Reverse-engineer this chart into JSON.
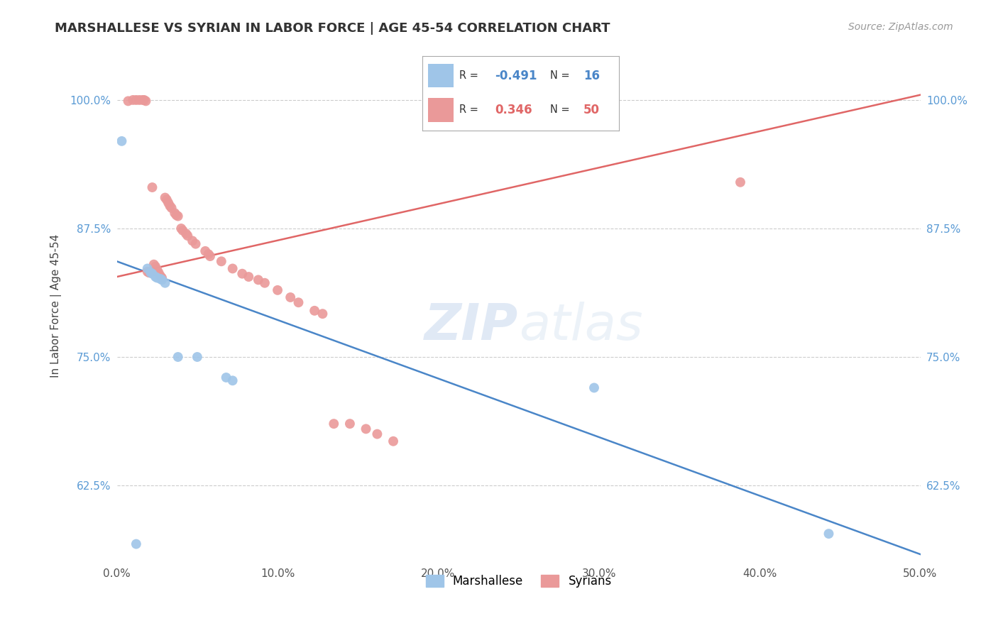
{
  "title": "MARSHALLESE VS SYRIAN IN LABOR FORCE | AGE 45-54 CORRELATION CHART",
  "source": "Source: ZipAtlas.com",
  "ylabel": "In Labor Force | Age 45-54",
  "xlim": [
    0.0,
    0.5
  ],
  "ylim": [
    0.55,
    1.05
  ],
  "yticks": [
    0.625,
    0.75,
    0.875,
    1.0
  ],
  "ytick_labels": [
    "62.5%",
    "75.0%",
    "87.5%",
    "100.0%"
  ],
  "xticks": [
    0.0,
    0.1,
    0.2,
    0.3,
    0.4,
    0.5
  ],
  "xtick_labels": [
    "0.0%",
    "10.0%",
    "20.0%",
    "30.0%",
    "40.0%",
    "50.0%"
  ],
  "watermark_zip": "ZIP",
  "watermark_atlas": "atlas",
  "legend_blue_r": "-0.491",
  "legend_blue_n": "16",
  "legend_pink_r": "0.346",
  "legend_pink_n": "50",
  "blue_dot_color": "#9fc5e8",
  "pink_dot_color": "#ea9999",
  "blue_line_color": "#4a86c8",
  "pink_line_color": "#e06666",
  "blue_scatter_x": [
    0.003,
    0.012,
    0.019,
    0.021,
    0.022,
    0.024,
    0.025,
    0.027,
    0.028,
    0.03,
    0.038,
    0.05,
    0.068,
    0.072,
    0.297,
    0.443
  ],
  "blue_scatter_y": [
    0.96,
    0.568,
    0.836,
    0.832,
    0.831,
    0.828,
    0.827,
    0.826,
    0.825,
    0.822,
    0.75,
    0.75,
    0.73,
    0.727,
    0.72,
    0.578
  ],
  "pink_scatter_x": [
    0.007,
    0.01,
    0.012,
    0.014,
    0.016,
    0.017,
    0.018,
    0.019,
    0.02,
    0.022,
    0.023,
    0.024,
    0.025,
    0.026,
    0.027,
    0.028,
    0.03,
    0.031,
    0.032,
    0.033,
    0.034,
    0.036,
    0.037,
    0.038,
    0.04,
    0.041,
    0.043,
    0.044,
    0.047,
    0.049,
    0.055,
    0.057,
    0.058,
    0.065,
    0.072,
    0.078,
    0.082,
    0.088,
    0.092,
    0.1,
    0.108,
    0.113,
    0.123,
    0.128,
    0.135,
    0.145,
    0.155,
    0.162,
    0.172,
    0.388
  ],
  "pink_scatter_y": [
    0.999,
    1.0,
    1.0,
    1.0,
    1.0,
    1.0,
    0.999,
    0.833,
    0.832,
    0.915,
    0.84,
    0.838,
    0.835,
    0.832,
    0.829,
    0.827,
    0.905,
    0.903,
    0.9,
    0.897,
    0.895,
    0.89,
    0.888,
    0.887,
    0.875,
    0.873,
    0.87,
    0.868,
    0.863,
    0.86,
    0.853,
    0.85,
    0.848,
    0.843,
    0.836,
    0.831,
    0.828,
    0.825,
    0.822,
    0.815,
    0.808,
    0.803,
    0.795,
    0.792,
    0.685,
    0.685,
    0.68,
    0.675,
    0.668,
    0.92
  ],
  "blue_line_x": [
    0.0,
    0.5
  ],
  "blue_line_y": [
    0.843,
    0.558
  ],
  "pink_line_x": [
    0.0,
    0.5
  ],
  "pink_line_y": [
    0.828,
    1.005
  ]
}
